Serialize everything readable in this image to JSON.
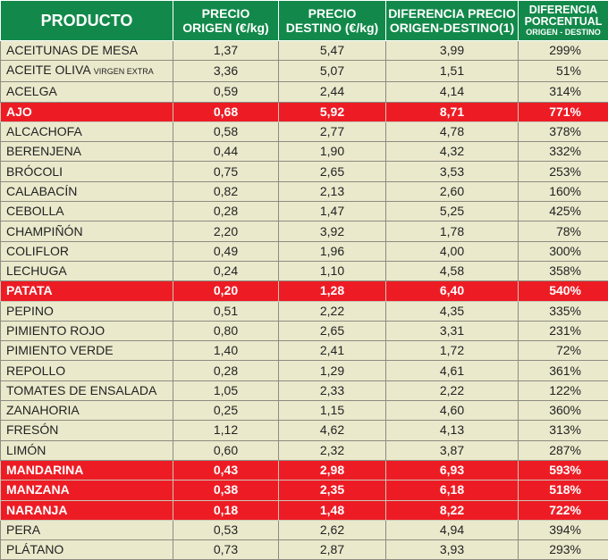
{
  "header": {
    "producto": "PRODUCTO",
    "origen": [
      "PRECIO",
      "ORIGEN (€/kg)"
    ],
    "destino": [
      "PRECIO",
      "DESTINO (€/kg)"
    ],
    "diferencia": [
      "DIFERENCIA PRECIO",
      "ORIGEN-DESTINO(1)"
    ],
    "porcentual": [
      "DIFERENCIA",
      "PORCENTUAL",
      "ORIGEN - DESTINO"
    ]
  },
  "colors": {
    "header": "#12894a",
    "highlight": "#ed1c24",
    "background": "#ebe9cc"
  },
  "rows": [
    {
      "name": "ACEITUNAS DE MESA",
      "origen": "1,37",
      "destino": "5,47",
      "dif": "3,99",
      "pct": "299%",
      "hl": false
    },
    {
      "name": "ACEITE OLIVA",
      "name_small": "VIRGEN EXTRA",
      "origen": "3,36",
      "destino": "5,07",
      "dif": "1,51",
      "pct": "51%",
      "hl": false
    },
    {
      "name": "ACELGA",
      "origen": "0,59",
      "destino": "2,44",
      "dif": "4,14",
      "pct": "314%",
      "hl": false
    },
    {
      "name": "AJO",
      "origen": "0,68",
      "destino": "5,92",
      "dif": "8,71",
      "pct": "771%",
      "hl": true
    },
    {
      "name": "ALCACHOFA",
      "origen": "0,58",
      "destino": "2,77",
      "dif": "4,78",
      "pct": "378%",
      "hl": false
    },
    {
      "name": "BERENJENA",
      "origen": "0,44",
      "destino": "1,90",
      "dif": "4,32",
      "pct": "332%",
      "hl": false
    },
    {
      "name": "BRÓCOLI",
      "origen": "0,75",
      "destino": "2,65",
      "dif": "3,53",
      "pct": "253%",
      "hl": false
    },
    {
      "name": "CALABACÍN",
      "origen": "0,82",
      "destino": "2,13",
      "dif": "2,60",
      "pct": "160%",
      "hl": false
    },
    {
      "name": "CEBOLLA",
      "origen": "0,28",
      "destino": "1,47",
      "dif": "5,25",
      "pct": "425%",
      "hl": false
    },
    {
      "name": "CHAMPIÑÓN",
      "origen": "2,20",
      "destino": "3,92",
      "dif": "1,78",
      "pct": "78%",
      "hl": false
    },
    {
      "name": "COLIFLOR",
      "origen": "0,49",
      "destino": "1,96",
      "dif": "4,00",
      "pct": "300%",
      "hl": false
    },
    {
      "name": "LECHUGA",
      "origen": "0,24",
      "destino": "1,10",
      "dif": "4,58",
      "pct": "358%",
      "hl": false
    },
    {
      "name": "PATATA",
      "origen": "0,20",
      "destino": "1,28",
      "dif": "6,40",
      "pct": "540%",
      "hl": true
    },
    {
      "name": "PEPINO",
      "origen": "0,51",
      "destino": "2,22",
      "dif": "4,35",
      "pct": "335%",
      "hl": false
    },
    {
      "name": "PIMIENTO ROJO",
      "origen": "0,80",
      "destino": "2,65",
      "dif": "3,31",
      "pct": "231%",
      "hl": false
    },
    {
      "name": "PIMIENTO VERDE",
      "origen": "1,40",
      "destino": "2,41",
      "dif": "1,72",
      "pct": "72%",
      "hl": false
    },
    {
      "name": "REPOLLO",
      "origen": "0,28",
      "destino": "1,29",
      "dif": "4,61",
      "pct": "361%",
      "hl": false
    },
    {
      "name": "TOMATES DE ENSALADA",
      "origen": "1,05",
      "destino": "2,33",
      "dif": "2,22",
      "pct": "122%",
      "hl": false
    },
    {
      "name": "ZANAHORIA",
      "origen": "0,25",
      "destino": "1,15",
      "dif": "4,60",
      "pct": "360%",
      "hl": false
    },
    {
      "name": "FRESÓN",
      "origen": "1,12",
      "destino": "4,62",
      "dif": "4,13",
      "pct": "313%",
      "hl": false
    },
    {
      "name": "LIMÓN",
      "origen": "0,60",
      "destino": "2,32",
      "dif": "3,87",
      "pct": "287%",
      "hl": false
    },
    {
      "name": "MANDARINA",
      "origen": "0,43",
      "destino": "2,98",
      "dif": "6,93",
      "pct": "593%",
      "hl": true
    },
    {
      "name": "MANZANA",
      "origen": "0,38",
      "destino": "2,35",
      "dif": "6,18",
      "pct": "518%",
      "hl": true
    },
    {
      "name": "NARANJA",
      "origen": "0,18",
      "destino": "1,48",
      "dif": "8,22",
      "pct": "722%",
      "hl": true
    },
    {
      "name": "PERA",
      "origen": "0,53",
      "destino": "2,62",
      "dif": "4,94",
      "pct": "394%",
      "hl": false
    },
    {
      "name": "PLÁTANO",
      "origen": "0,73",
      "destino": "2,87",
      "dif": "3,93",
      "pct": "293%",
      "hl": false
    }
  ]
}
